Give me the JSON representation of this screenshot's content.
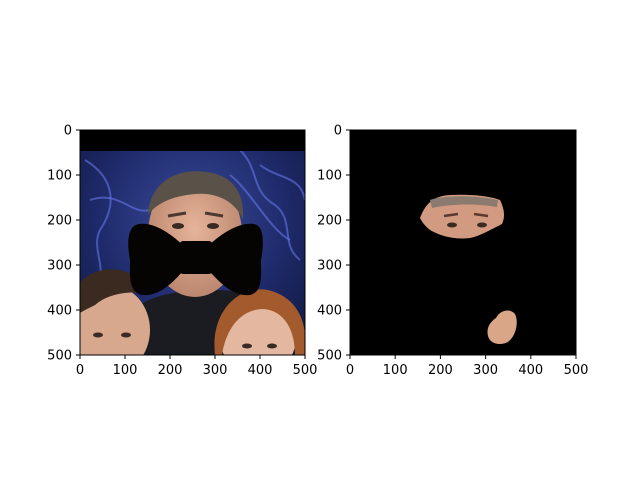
{
  "chart_data": [
    {
      "type": "image",
      "title": "",
      "xlabel": "",
      "ylabel": "",
      "xlim": [
        0,
        500
      ],
      "ylim": [
        500,
        0
      ],
      "xticks": [
        0,
        100,
        200,
        300,
        400,
        500
      ],
      "yticks": [
        0,
        100,
        200,
        300,
        400,
        500
      ],
      "content": "photo of three people with a black bow-tie shape pasted over the man's mouth; black band across the top"
    },
    {
      "type": "image",
      "title": "",
      "xlabel": "",
      "ylabel": "",
      "xlim": [
        0,
        500
      ],
      "ylim": [
        500,
        0
      ],
      "xticks": [
        0,
        100,
        200,
        300,
        400,
        500
      ],
      "yticks": [
        0,
        100,
        200,
        300,
        400,
        500
      ],
      "content": "black mask revealing only the man's upper face and a small skin-colored patch"
    }
  ],
  "colors": {
    "mask_background": "#000000",
    "bow_tie": "#060303",
    "background_blue": "#1e2a6a",
    "skin": "#d9a688"
  }
}
